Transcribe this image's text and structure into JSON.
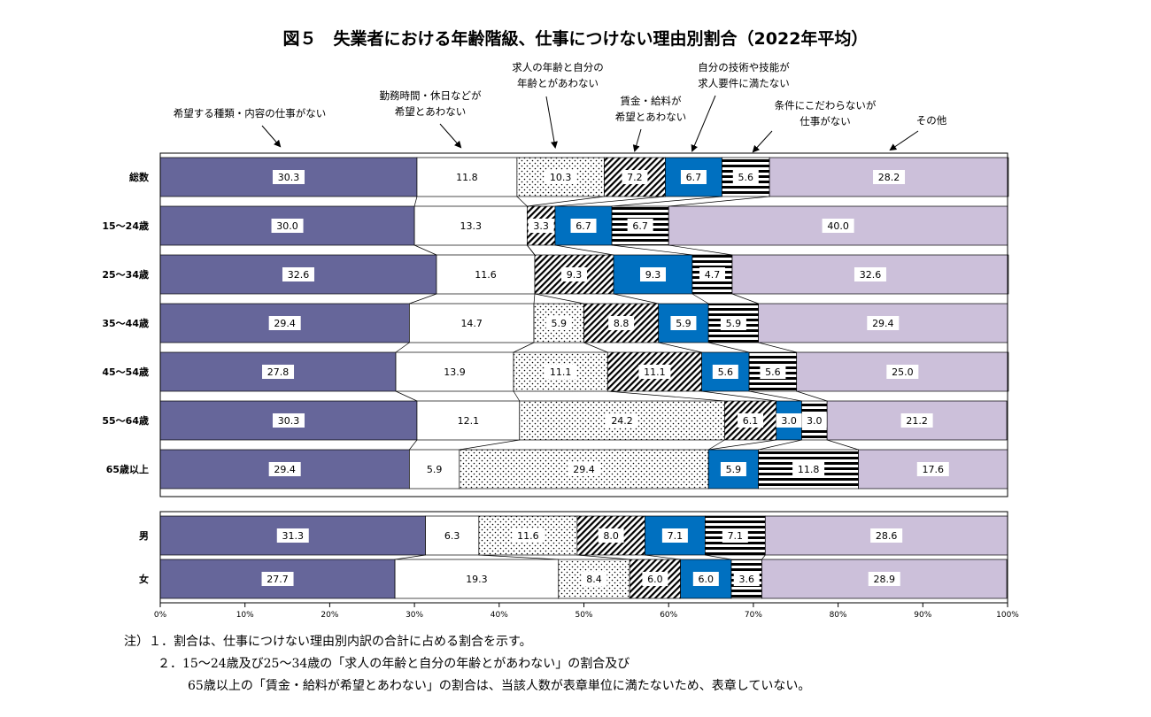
{
  "chart_data": {
    "type": "bar",
    "orientation": "horizontal-stacked-100",
    "title": "図５　失業者における年齢階級、仕事につけない理由別割合（2022年平均）",
    "series": [
      {
        "name": "希望する種類・内容の仕事がない",
        "color": "#66669a",
        "pattern": "solid"
      },
      {
        "name": "勤務時間・休日などが希望とあわない",
        "color": "#ffffff",
        "pattern": "white"
      },
      {
        "name": "求人の年齢と自分の年齢とがあわない",
        "color": "#ffffff",
        "pattern": "dots"
      },
      {
        "name": "賃金・給料が希望とあわない",
        "color": "#ffffff",
        "pattern": "hatch"
      },
      {
        "name": "自分の技術や技能が求人要件に満たない",
        "color": "#0070c0",
        "pattern": "solid"
      },
      {
        "name": "条件にこだわらないが仕事がない",
        "color": "#ffffff",
        "pattern": "stripes"
      },
      {
        "name": "その他",
        "color": "#ccc0da",
        "pattern": "solid"
      }
    ],
    "legend_lines": [
      [
        "希望する種類・内容の仕事がない"
      ],
      [
        "勤務時間・休日などが",
        "希望とあわない"
      ],
      [
        "求人の年齢と自分の",
        "年齢とがあわない"
      ],
      [
        "賃金・給料が",
        "希望とあわない"
      ],
      [
        "自分の技術や技能が",
        "求人要件に満たない"
      ],
      [
        "条件にこだわらないが",
        "仕事がない"
      ],
      [
        "その他"
      ]
    ],
    "groups": [
      {
        "rows": [
          {
            "category": "総数",
            "values": [
              30.3,
              11.8,
              10.3,
              7.2,
              6.7,
              5.6,
              28.2
            ],
            "labels": [
              "30.3",
              "11.8",
              "10.3",
              "7.2",
              "6.7",
              "5.6",
              "28.2"
            ]
          },
          {
            "category": "15～24歳",
            "values": [
              30.0,
              13.3,
              0,
              3.3,
              6.7,
              6.7,
              40.0
            ],
            "labels": [
              "30.0",
              "13.3",
              "",
              "3.3",
              "6.7",
              "6.7",
              "40.0"
            ]
          },
          {
            "category": "25～34歳",
            "values": [
              32.6,
              11.6,
              0,
              9.3,
              9.3,
              4.7,
              32.6
            ],
            "labels": [
              "32.6",
              "11.6",
              "",
              "9.3",
              "9.3",
              "4.7",
              "32.6"
            ]
          },
          {
            "category": "35～44歳",
            "values": [
              29.4,
              14.7,
              5.9,
              8.8,
              5.9,
              5.9,
              29.4
            ],
            "labels": [
              "29.4",
              "14.7",
              "5.9",
              "8.8",
              "5.9",
              "5.9",
              "29.4"
            ]
          },
          {
            "category": "45～54歳",
            "values": [
              27.8,
              13.9,
              11.1,
              11.1,
              5.6,
              5.6,
              25.0
            ],
            "labels": [
              "27.8",
              "13.9",
              "11.1",
              "11.1",
              "5.6",
              "5.6",
              "25.0"
            ]
          },
          {
            "category": "55～64歳",
            "values": [
              30.3,
              12.1,
              24.2,
              6.1,
              3.0,
              3.0,
              21.2
            ],
            "labels": [
              "30.3",
              "12.1",
              "24.2",
              "6.1",
              "3.0",
              "3.0",
              "21.2"
            ]
          },
          {
            "category": "65歳以上",
            "values": [
              29.4,
              5.9,
              29.4,
              0,
              5.9,
              11.8,
              17.6
            ],
            "labels": [
              "29.4",
              "5.9",
              "29.4",
              "",
              "5.9",
              "11.8",
              "17.6"
            ]
          }
        ]
      },
      {
        "rows": [
          {
            "category": "男",
            "values": [
              31.3,
              6.3,
              11.6,
              8.0,
              7.1,
              7.1,
              28.6
            ],
            "labels": [
              "31.3",
              "6.3",
              "11.6",
              "8.0",
              "7.1",
              "7.1",
              "28.6"
            ]
          },
          {
            "category": "女",
            "values": [
              27.7,
              19.3,
              8.4,
              6.0,
              6.0,
              3.6,
              28.9
            ],
            "labels": [
              "27.7",
              "19.3",
              "8.4",
              "6.0",
              "6.0",
              "3.6",
              "28.9"
            ]
          }
        ]
      }
    ],
    "xlim": [
      0,
      100
    ],
    "xticks": [
      "0%",
      "10%",
      "20%",
      "30%",
      "40%",
      "50%",
      "60%",
      "70%",
      "80%",
      "90%",
      "100%"
    ]
  },
  "notes": {
    "line1": "注）１．割合は、仕事につけない理由別内訳の合計に占める割合を示す。",
    "line2": "２．15～24歳及び25～34歳の「求人の年齢と自分の年齢とがあわない」の割合及び",
    "line3": "65歳以上の「賃金・給料が希望とあわない」の割合は、当該人数が表章単位に満たないため、表章していない。"
  }
}
